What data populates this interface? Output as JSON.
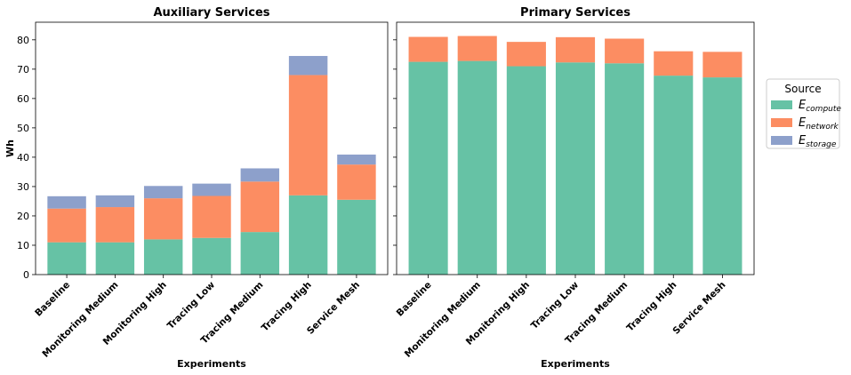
{
  "chart_data": {
    "type": "bar",
    "stacked": true,
    "ylabel": "Wh",
    "ylim": [
      0,
      86
    ],
    "yticks": [
      0,
      10,
      20,
      30,
      40,
      50,
      60,
      70,
      80
    ],
    "legend": {
      "title": "Source",
      "position": "right",
      "entries": [
        {
          "name": "compute",
          "main": "E",
          "sub": "compute",
          "color": "#66c2a5"
        },
        {
          "name": "network",
          "main": "E",
          "sub": "network",
          "color": "#fc8d62"
        },
        {
          "name": "storage",
          "main": "E",
          "sub": "storage",
          "color": "#8da0cb"
        }
      ]
    },
    "panels": [
      {
        "title": "Auxiliary Services",
        "xlabel": "Experiments",
        "categories": [
          "Baseline",
          "Monitoring Medium",
          "Monitoring High",
          "Tracing Low",
          "Tracing Medium",
          "Tracing High",
          "Service Mesh"
        ],
        "series": [
          {
            "name": "compute",
            "values": [
              11.0,
              11.0,
              12.0,
              12.5,
              14.5,
              27.0,
              25.5
            ]
          },
          {
            "name": "network",
            "values": [
              11.5,
              12.0,
              14.0,
              14.3,
              17.2,
              41.0,
              12.0
            ]
          },
          {
            "name": "storage",
            "values": [
              4.2,
              4.0,
              4.2,
              4.2,
              4.5,
              6.5,
              3.4
            ]
          }
        ]
      },
      {
        "title": "Primary Services",
        "xlabel": "Experiments",
        "categories": [
          "Baseline",
          "Monitoring Medium",
          "Monitoring High",
          "Tracing Low",
          "Tracing Medium",
          "Tracing High",
          "Service Mesh"
        ],
        "series": [
          {
            "name": "compute",
            "values": [
              72.5,
              72.8,
              71.0,
              72.3,
              72.0,
              67.8,
              67.2
            ]
          },
          {
            "name": "network",
            "values": [
              8.5,
              8.5,
              8.3,
              8.6,
              8.4,
              8.3,
              8.7
            ]
          },
          {
            "name": "storage",
            "values": [
              0.0,
              0.0,
              0.0,
              0.0,
              0.0,
              0.0,
              0.0
            ]
          }
        ]
      }
    ]
  }
}
